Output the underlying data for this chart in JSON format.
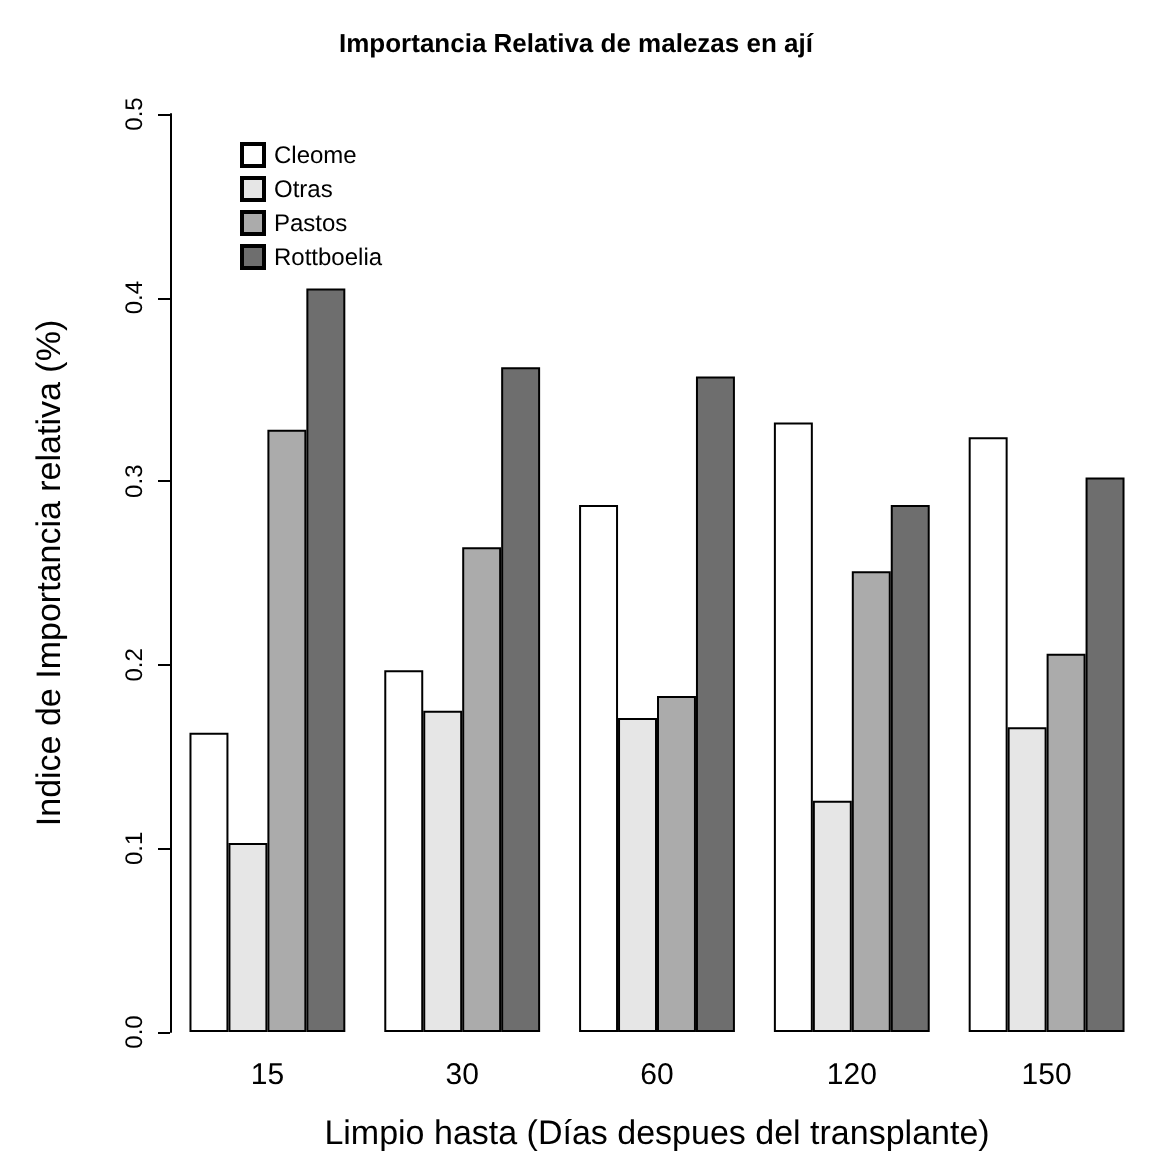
{
  "chart_data": {
    "type": "bar",
    "title": "Importancia Relativa de malezas en ají",
    "xlabel": "Limpio hasta (Días despues del transplante)",
    "ylabel": "Indice de Importancia relativa (%)",
    "categories": [
      "15",
      "30",
      "60",
      "120",
      "150"
    ],
    "series": [
      {
        "name": "Cleome",
        "color": "#ffffff",
        "values": [
          0.163,
          0.197,
          0.287,
          0.332,
          0.324
        ]
      },
      {
        "name": "Otras",
        "color": "#e6e6e6",
        "values": [
          0.103,
          0.175,
          0.171,
          0.126,
          0.166
        ]
      },
      {
        "name": "Pastos",
        "color": "#ababab",
        "values": [
          0.328,
          0.264,
          0.183,
          0.251,
          0.206
        ]
      },
      {
        "name": "Rottboelia",
        "color": "#6e6e6e",
        "values": [
          0.405,
          0.362,
          0.357,
          0.287,
          0.302
        ]
      }
    ],
    "ylim": [
      0,
      0.5
    ],
    "yticks": [
      {
        "value": 0,
        "label": "0.0"
      },
      0.1,
      0.2,
      0.3,
      0.4,
      0.5
    ],
    "grid": false,
    "legend": "top left"
  }
}
